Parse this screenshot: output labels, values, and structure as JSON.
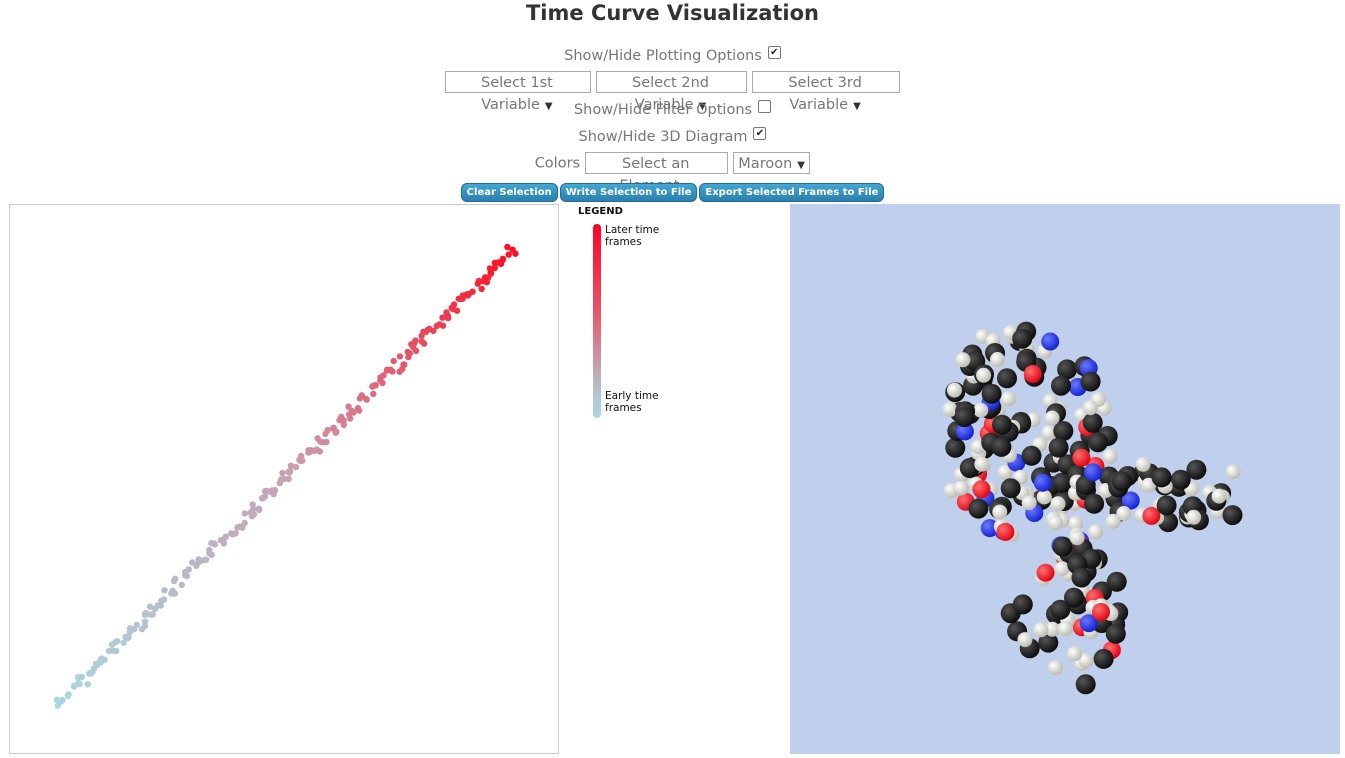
{
  "page": {
    "title": "Time Curve Visualization"
  },
  "plotting_options": {
    "label": "Show/Hide Plotting Options",
    "checked": true,
    "var1_selected": "Select 1st Variable",
    "var2_selected": "Select 2nd Variable",
    "var3_selected": "Select 3rd Variable"
  },
  "filter_options": {
    "label": "Show/Hide Filter Options",
    "checked": false
  },
  "diagram_3d": {
    "label": "Show/Hide 3D Diagram",
    "checked": true
  },
  "colors": {
    "label": "Colors",
    "element_selected": "Select an Element",
    "color_selected": "Maroon"
  },
  "buttons": {
    "clear_selection": "Clear Selection",
    "write_selection": "Write Selection to File",
    "export_frames": "Export Selected Frames to File"
  },
  "legend": {
    "title": "LEGEND",
    "later_label": "Later time frames",
    "early_label": "Early time frames",
    "later_color": "#ff0022",
    "early_color": "#aad6df"
  },
  "chart_data": {
    "type": "scatter",
    "title": "",
    "xlabel": "",
    "ylabel": "",
    "color_encoding": "time frame (early = light blue, later = red)",
    "grid": false,
    "points_start": [
      0.02,
      0.02
    ],
    "points_end": [
      0.98,
      0.98
    ],
    "approx_point_count": 230
  },
  "molecule": {
    "atom_colors": {
      "carbon": "#0a0a0a",
      "hydrogen": "#e8e8e3",
      "oxygen": "#e00010",
      "nitrogen": "#1020d0"
    },
    "background": "#c0cfeb"
  }
}
